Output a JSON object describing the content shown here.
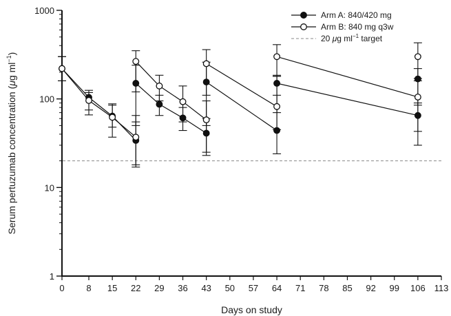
{
  "chart_data": {
    "type": "line",
    "title": "",
    "xlabel": "Days on study",
    "ylabel": {
      "prefix": "Serum pertuzumab concentration (",
      "unit_mu": "μ",
      "unit_g_ml": "g ml",
      "unit_sup": "−1",
      "suffix": ")"
    },
    "x_ticks": [
      0,
      8,
      15,
      22,
      29,
      36,
      43,
      50,
      57,
      64,
      71,
      78,
      85,
      92,
      99,
      106,
      113
    ],
    "xlim": [
      0,
      113
    ],
    "y_scale": "log",
    "ylim": [
      1,
      1000
    ],
    "y_ticks": [
      1,
      10,
      100,
      1000
    ],
    "grid": false,
    "legend_position": "top-right",
    "reference_line": {
      "y": 20,
      "label_prefix": "20 ",
      "label_mu": "μ",
      "label_g_ml": "g ml",
      "label_sup": "−1",
      "label_suffix": " target",
      "color": "#888888"
    },
    "series": [
      {
        "name": "Arm A: 840/420 mg",
        "marker": "filled-circle",
        "color": "#111111",
        "segments": [
          [
            {
              "x": 0,
              "y": 220,
              "err_low": 160,
              "err_high": 300
            },
            {
              "x": 8,
              "y": 104,
              "err_low": 75,
              "err_high": 125
            },
            {
              "x": 15,
              "y": 64,
              "err_low": 48,
              "err_high": 85
            },
            {
              "x": 22,
              "y": 34,
              "err_low": 18,
              "err_high": 55
            }
          ],
          [
            {
              "x": 22,
              "y": 150,
              "err_low": 50,
              "err_high": 240
            },
            {
              "x": 29,
              "y": 87,
              "err_low": 65,
              "err_high": 110
            },
            {
              "x": 36,
              "y": 61,
              "err_low": 44,
              "err_high": 80
            },
            {
              "x": 43,
              "y": 41,
              "err_low": 25,
              "err_high": 60
            }
          ],
          [
            {
              "x": 43,
              "y": 155,
              "err_low": 50,
              "err_high": 260
            },
            {
              "x": 64,
              "y": 44,
              "err_low": 24,
              "err_high": 110
            }
          ],
          [
            {
              "x": 64,
              "y": 150,
              "err_low": 70,
              "err_high": 180
            },
            {
              "x": 106,
              "y": 65,
              "err_low": 30,
              "err_high": 90
            }
          ],
          [
            {
              "x": 106,
              "y": 168,
              "err_low": 85,
              "err_high": 220
            }
          ]
        ]
      },
      {
        "name": "Arm B: 840 mg q3w",
        "marker": "open-circle",
        "color": "#111111",
        "segments": [
          [
            {
              "x": 0,
              "y": 220,
              "err_low": 160,
              "err_high": 300
            },
            {
              "x": 8,
              "y": 96,
              "err_low": 66,
              "err_high": 118
            },
            {
              "x": 15,
              "y": 62,
              "err_low": 37,
              "err_high": 88
            },
            {
              "x": 22,
              "y": 37,
              "err_low": 17,
              "err_high": 65
            }
          ],
          [
            {
              "x": 22,
              "y": 265,
              "err_low": 120,
              "err_high": 350
            },
            {
              "x": 29,
              "y": 140,
              "err_low": 95,
              "err_high": 185
            },
            {
              "x": 36,
              "y": 93,
              "err_low": 55,
              "err_high": 140
            },
            {
              "x": 43,
              "y": 58,
              "err_low": 23,
              "err_high": 95
            }
          ],
          [
            {
              "x": 43,
              "y": 250,
              "err_low": 110,
              "err_high": 360
            },
            {
              "x": 64,
              "y": 82,
              "err_low": 45,
              "err_high": 185
            }
          ],
          [
            {
              "x": 64,
              "y": 300,
              "err_low": 180,
              "err_high": 410
            },
            {
              "x": 106,
              "y": 105,
              "err_low": 43,
              "err_high": 170
            }
          ],
          [
            {
              "x": 106,
              "y": 300,
              "err_low": 160,
              "err_high": 430
            }
          ]
        ]
      }
    ]
  }
}
